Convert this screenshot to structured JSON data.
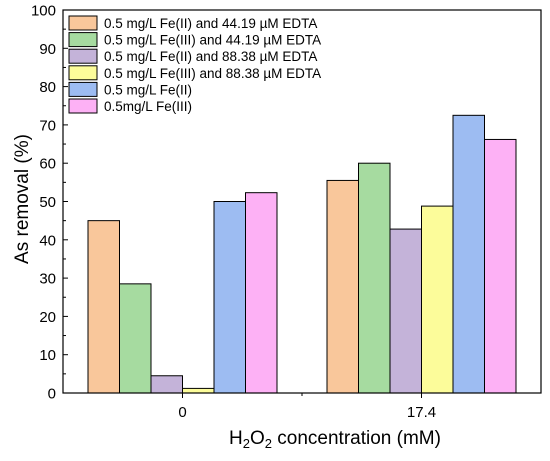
{
  "chart_data": {
    "type": "bar",
    "categories": [
      "0",
      "17.4"
    ],
    "series": [
      {
        "name": "0.5 mg/L Fe(II) and 44.19 µM EDTA",
        "color": "#f9c79b",
        "values": [
          45.0,
          55.5
        ]
      },
      {
        "name": "0.5 mg/L Fe(III) and 44.19 µM EDTA",
        "color": "#a6dba0",
        "values": [
          28.5,
          60.0
        ]
      },
      {
        "name": "0.5 mg/L Fe(II) and 88.38 µM EDTA",
        "color": "#c4b3d9",
        "values": [
          4.5,
          42.8
        ]
      },
      {
        "name": "0.5 mg/L Fe(III) and 88.38 µM EDTA",
        "color": "#fcfc9a",
        "values": [
          1.2,
          48.8
        ]
      },
      {
        "name": "0.5 mg/L Fe(II)",
        "color": "#9dbcf2",
        "values": [
          50.0,
          72.5
        ]
      },
      {
        "name": "0.5mg/L Fe(III)",
        "color": "#fdb1f5",
        "values": [
          52.3,
          66.2
        ]
      }
    ],
    "xlabel_main": "H",
    "xlabel_sub1": "2",
    "xlabel_mid": "O",
    "xlabel_sub2": "2",
    "xlabel_tail": " concentration (mM)",
    "ylabel": "As removal (%)",
    "ylim": [
      0,
      100
    ],
    "yticks": [
      "0",
      "10",
      "20",
      "30",
      "40",
      "50",
      "60",
      "70",
      "80",
      "90",
      "100"
    ],
    "grid": false,
    "legend_position": "top-left"
  }
}
